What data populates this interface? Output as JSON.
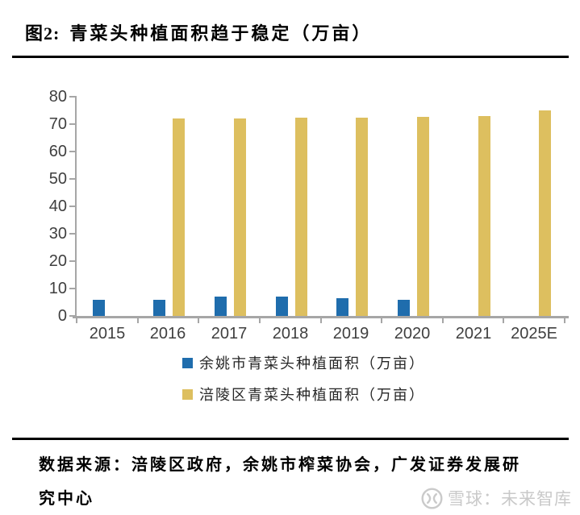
{
  "header": {
    "figure_label": "图2:",
    "title": "青菜头种植面积趋于稳定（万亩）"
  },
  "chart_data": {
    "type": "bar",
    "title": "青菜头种植面积趋于稳定（万亩）",
    "categories": [
      "2015",
      "2016",
      "2017",
      "2018",
      "2019",
      "2020",
      "2021",
      "2025E"
    ],
    "series": [
      {
        "name": "余姚市青菜头种植面积（万亩）",
        "color": "#1F6DAD",
        "values": [
          5.9,
          5.9,
          7.0,
          7.0,
          6.5,
          5.8,
          null,
          null
        ]
      },
      {
        "name": "涪陵区青菜头种植面积（万亩）",
        "color": "#DDBF5F",
        "values": [
          null,
          72.0,
          72.2,
          72.3,
          72.4,
          72.5,
          72.8,
          75.0
        ]
      }
    ],
    "ylim": [
      0,
      80
    ],
    "ytick_step": 10,
    "ytick_labels": [
      "0",
      "10",
      "20",
      "30",
      "40",
      "50",
      "60",
      "70",
      "80"
    ],
    "grid": false,
    "legend_position": "bottom",
    "axis_color": "#A6A6A6",
    "tick_label_color": "#3F3F3F"
  },
  "footer": {
    "source_lines": [
      "数据来源：涪陵区政府，余姚市榨菜协会，广发证券发展研",
      "究中心"
    ],
    "watermark": "雪球：未来智库"
  }
}
